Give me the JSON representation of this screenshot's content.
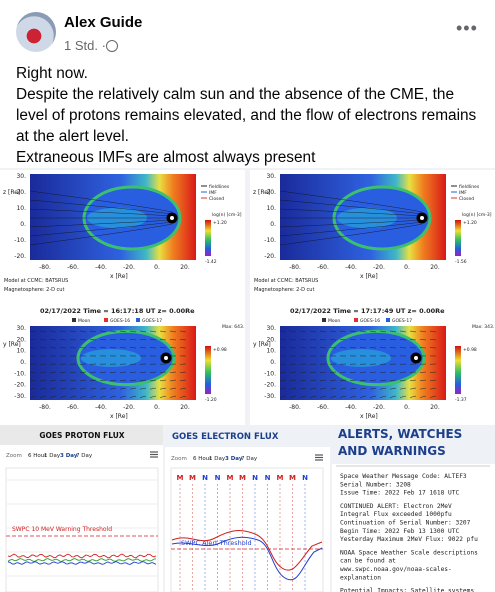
{
  "post": {
    "author": "Alex Guide",
    "time": "1 Std. ·",
    "paragraphs": [
      "Right now.",
      "Despite the relatively calm sun and the absence of the CME, the level of protons remains elevated, and the flow of electrons remains at the alert level.",
      "Extraneous IMFs are almost always present"
    ]
  },
  "simulation": {
    "y_ticks": [
      "30.",
      "20.",
      "10.",
      "0.",
      "-10.",
      "-20.",
      "-30."
    ],
    "x_ticks": [
      "-80.",
      "-60.",
      "-40.",
      "-20.",
      "0.",
      "20."
    ],
    "x_label": "x [Re]",
    "z_label": "z [Re]",
    "y_label": "y [Re]",
    "model": "Model at CCMC: BATSRUS",
    "cut": "Magnetosphere: 2-D cut",
    "legend_top": [
      "fieldlines",
      "IMF",
      "Closed"
    ],
    "legend_bottom": [
      "Moon",
      "GOES-16",
      "GOES-17"
    ],
    "colorbar_label": "log(n) [cm-3]",
    "panels": [
      {
        "time": "02/17/2022 Time = 16:17:18 UT z= 0.00Re",
        "top_max": "+1.20",
        "top_min": "-1.42",
        "bottom_max": "+0.98",
        "bottom_min": "-1.20",
        "max": "Max: 643."
      },
      {
        "time": "02/17/2022 Time = 17:17:49 UT z= 0.00Re",
        "top_max": "+1.20",
        "top_min": "-1.56",
        "bottom_max": "+0.98",
        "bottom_min": "-1.37",
        "max": "Max: 343."
      }
    ]
  },
  "proton": {
    "title": "GOES PROTON FLUX",
    "zoom": "Zoom",
    "ranges": [
      "6 Hour",
      "1 Day",
      "3 Day",
      "7 Day"
    ],
    "threshold": "SWPC 10 MeV Warning Threshold"
  },
  "electron": {
    "title": "GOES ELECTRON FLUX",
    "zoom": "Zoom",
    "ranges": [
      "6 Hour",
      "1 Day",
      "3 Day",
      "7 Day"
    ],
    "markers": [
      "M",
      "M",
      "N",
      "N",
      "M",
      "M",
      "N",
      "N",
      "M",
      "M",
      "N"
    ],
    "threshold": "SWPC Alert Threshold"
  },
  "alerts": {
    "title": "ALERTS, WATCHES AND WARNINGS",
    "groups": [
      [
        "Space Weather Message Code: ALTEF3",
        "Serial Number: 3208",
        "Issue Time: 2022 Feb 17 1618 UTC"
      ],
      [
        "CONTINUED ALERT: Electron 2MeV",
        "Integral Flux exceeded 1000pfu",
        "Continuation of Serial Number: 3207",
        "Begin Time: 2022 Feb 13 1300 UTC",
        "Yesterday Maximum 2MeV Flux: 9022 pfu"
      ],
      [
        "NOAA Space Weather Scale descriptions",
        "can be found at",
        "www.swpc.noaa.gov/noaa-scales-",
        "explanation"
      ],
      [
        "Potential Impacts: Satellite systems"
      ]
    ]
  }
}
